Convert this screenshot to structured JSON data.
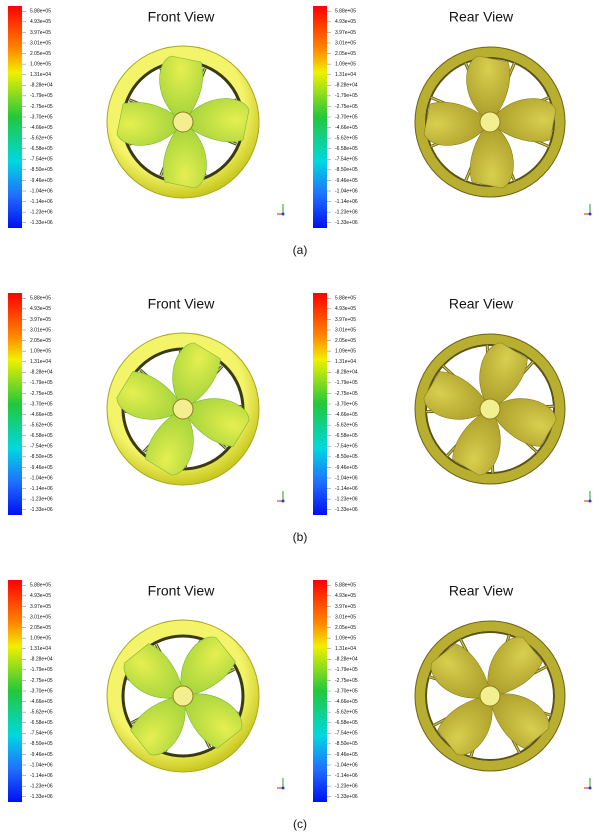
{
  "colorbar_labels": [
    "5.88e+05",
    "4.93e+05",
    "3.97e+05",
    "3.01e+05",
    "2.05e+05",
    "1.09e+05",
    "1.31e+04",
    "-8.28e+04",
    "-1.79e+05",
    "-2.75e+05",
    "-3.70e+05",
    "-4.66e+05",
    "-5.62e+05",
    "-6.58e+05",
    "-7.54e+05",
    "-8.50e+05",
    "-9.46e+05",
    "-1.04e+06",
    "-1.14e+06",
    "-1.23e+06",
    "-1.33e+06"
  ],
  "panels": [
    {
      "caption": "(a)",
      "views": [
        {
          "title": "Front View"
        },
        {
          "title": "Rear View"
        }
      ]
    },
    {
      "caption": "(b)",
      "views": [
        {
          "title": "Front View"
        },
        {
          "title": "Rear View"
        }
      ]
    },
    {
      "caption": "(c)",
      "views": [
        {
          "title": "Front View"
        },
        {
          "title": "Rear View"
        }
      ]
    }
  ]
}
